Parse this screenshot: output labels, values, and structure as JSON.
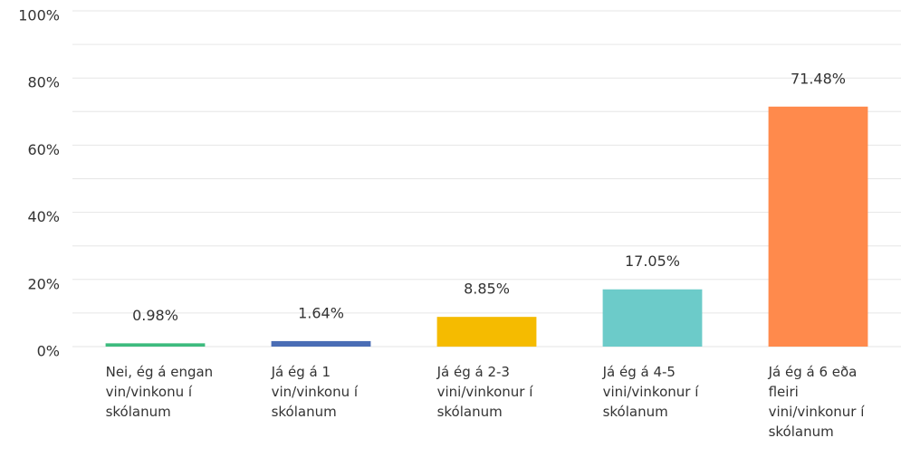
{
  "chart_data": {
    "type": "bar",
    "categories": [
      "Nei, ég á engan vin/vinkonu í skólanum",
      "Já ég á 1 vin/vinkonu í skólanum",
      "Já ég á 2-3 vini/vinkonur í skólanum",
      "Já ég á 4-5 vini/vinkonur í skólanum",
      "Já ég á 6 eða fleiri vini/vinkonur í skólanum"
    ],
    "values": [
      0.98,
      1.64,
      8.85,
      17.05,
      71.48
    ],
    "value_labels": [
      "0.98%",
      "1.64%",
      "8.85%",
      "17.05%",
      "71.48%"
    ],
    "colors": [
      "#3dbb7e",
      "#4a6db5",
      "#f5bb00",
      "#6ccbc9",
      "#ff8a4c"
    ],
    "ylim": [
      0,
      100
    ],
    "yticks": [
      {
        "value": 0,
        "label": "0%"
      },
      {
        "value": 20,
        "label": "20%"
      },
      {
        "value": 40,
        "label": "40%"
      },
      {
        "value": 60,
        "label": "60%"
      },
      {
        "value": 80,
        "label": "80%"
      },
      {
        "value": 100,
        "label": "100%"
      }
    ],
    "minor_yticks": [
      10,
      30,
      50,
      70,
      90
    ],
    "grid": true
  }
}
